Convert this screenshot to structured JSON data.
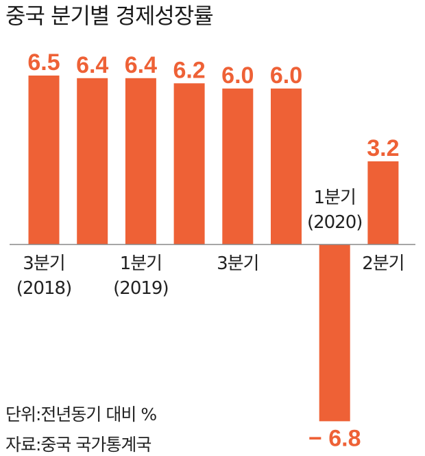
{
  "chart_data": {
    "type": "bar",
    "title": "중국 분기별 경제성장률",
    "categories": [
      "2018-Q3",
      "2018-Q4",
      "2019-Q1",
      "2019-Q2",
      "2019-Q3",
      "2019-Q4",
      "2020-Q1",
      "2020-Q2"
    ],
    "values": [
      6.5,
      6.4,
      6.4,
      6.2,
      6.0,
      6.0,
      -6.8,
      3.2
    ],
    "value_labels": [
      "6.5",
      "6.4",
      "6.4",
      "6.2",
      "6.0",
      "6.0",
      "− 6.8",
      "3.2"
    ],
    "category_labels": [
      {
        "index": 0,
        "lines": [
          "3분기",
          "(2018)"
        ]
      },
      {
        "index": 2,
        "lines": [
          "1분기",
          "(2019)"
        ]
      },
      {
        "index": 4,
        "lines": [
          "3분기"
        ]
      },
      {
        "index": 6,
        "lines": [
          "1분기",
          "(2020)"
        ]
      },
      {
        "index": 7,
        "lines": [
          "2분기"
        ]
      }
    ],
    "ylim": [
      -6.8,
      6.5
    ],
    "grid": false,
    "bar_color": "#ee6136",
    "label_color": "#ee6136",
    "axis_color": "#888888"
  },
  "notes": {
    "unit": "단위:전년동기 대비 %",
    "source": "자료:중국 국가통계국"
  }
}
